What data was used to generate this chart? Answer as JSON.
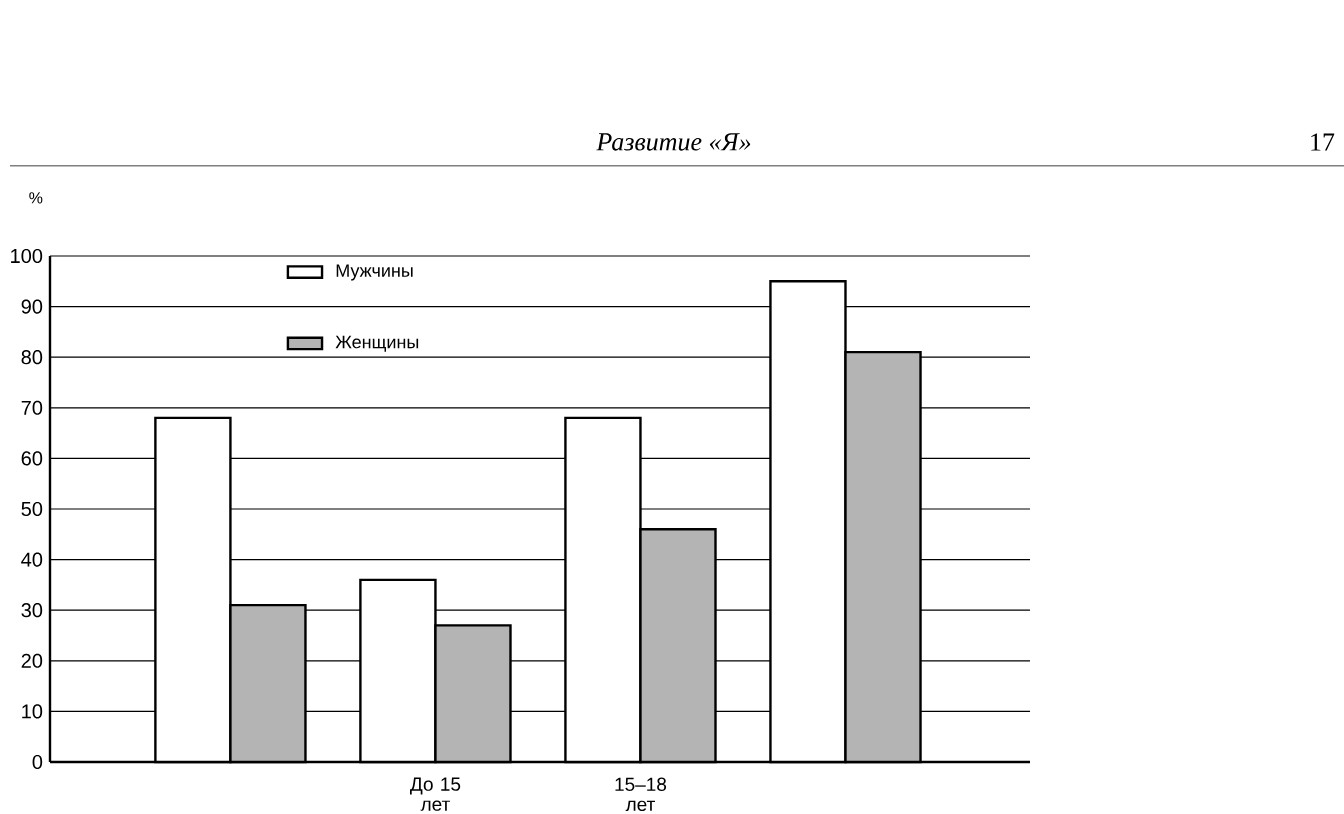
{
  "chart_data": {
    "type": "bar",
    "title": "Развитие «Я»",
    "annotations": [
      "17"
    ],
    "ylabel": "%",
    "categories": [
      null,
      "До 15 лет",
      "15–18 лет",
      null
    ],
    "series": [
      {
        "name": "Мужчины",
        "color": "#ffffff",
        "values": [
          68,
          36,
          68,
          95
        ]
      },
      {
        "name": "Женщины",
        "color": "#b4b4b4",
        "values": [
          31,
          27,
          46,
          81
        ]
      }
    ],
    "ylim": [
      0,
      100
    ],
    "yticks": [
      0,
      10,
      20,
      30,
      40,
      50,
      60,
      70,
      80,
      90,
      100
    ],
    "grid": "y",
    "legend": "top"
  }
}
